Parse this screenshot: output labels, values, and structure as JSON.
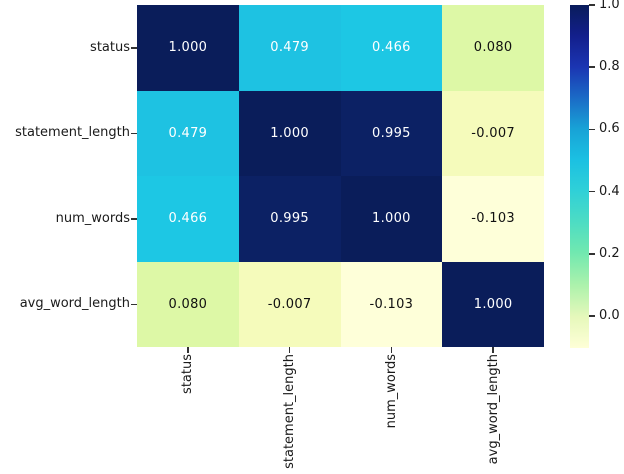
{
  "chart_data": {
    "type": "heatmap",
    "title": "",
    "colormap": "YlGnBu",
    "categories": [
      "status",
      "statement_length",
      "num_words",
      "avg_word_length"
    ],
    "matrix": [
      [
        1.0,
        0.479,
        0.466,
        0.08
      ],
      [
        0.479,
        1.0,
        0.995,
        -0.007
      ],
      [
        0.466,
        0.995,
        1.0,
        -0.103
      ],
      [
        0.08,
        -0.007,
        -0.103,
        1.0
      ]
    ],
    "cells": [
      [
        {
          "v": "1.000",
          "bg": "#0a1d5a",
          "fg": "#ffffff"
        },
        {
          "v": "0.479",
          "bg": "#1ec2e2",
          "fg": "#ffffff"
        },
        {
          "v": "0.466",
          "bg": "#1dc7e4",
          "fg": "#ffffff"
        },
        {
          "v": "0.080",
          "bg": "#ddf8a6",
          "fg": "#111111"
        }
      ],
      [
        {
          "v": "0.479",
          "bg": "#1ec2e2",
          "fg": "#ffffff"
        },
        {
          "v": "1.000",
          "bg": "#0a1d5a",
          "fg": "#ffffff"
        },
        {
          "v": "0.995",
          "bg": "#0c2164",
          "fg": "#ffffff"
        },
        {
          "v": "-0.007",
          "bg": "#f5fbbb",
          "fg": "#111111"
        }
      ],
      [
        {
          "v": "0.466",
          "bg": "#1dc7e4",
          "fg": "#ffffff"
        },
        {
          "v": "0.995",
          "bg": "#0c2164",
          "fg": "#ffffff"
        },
        {
          "v": "1.000",
          "bg": "#0a1d5a",
          "fg": "#ffffff"
        },
        {
          "v": "-0.103",
          "bg": "#feffd9",
          "fg": "#111111"
        }
      ],
      [
        {
          "v": "0.080",
          "bg": "#ddf8a6",
          "fg": "#111111"
        },
        {
          "v": "-0.007",
          "bg": "#f5fbbb",
          "fg": "#111111"
        },
        {
          "v": "-0.103",
          "bg": "#feffd9",
          "fg": "#111111"
        },
        {
          "v": "1.000",
          "bg": "#0a1d5a",
          "fg": "#ffffff"
        }
      ]
    ],
    "vmin": -0.103,
    "vmax": 1.0,
    "legend_position": "right",
    "grid": false,
    "colorbar": {
      "ticks": [
        "1.0",
        "0.8",
        "0.6",
        "0.4",
        "0.2",
        "0.0"
      ],
      "tick_values": [
        1.0,
        0.8,
        0.6,
        0.4,
        0.2,
        0.0
      ],
      "gradient": [
        {
          "pos": 0,
          "color": "#091c5b"
        },
        {
          "pos": 9,
          "color": "#131f8c"
        },
        {
          "pos": 18,
          "color": "#1b35b2"
        },
        {
          "pos": 27,
          "color": "#1b6ac6"
        },
        {
          "pos": 36,
          "color": "#18a2d6"
        },
        {
          "pos": 45,
          "color": "#1bc0e2"
        },
        {
          "pos": 54,
          "color": "#2fd0d8"
        },
        {
          "pos": 63,
          "color": "#4cdcc4"
        },
        {
          "pos": 72,
          "color": "#70e8b0"
        },
        {
          "pos": 82,
          "color": "#aef2ac"
        },
        {
          "pos": 91,
          "color": "#e6f8bb"
        },
        {
          "pos": 100,
          "color": "#feffd7"
        }
      ]
    }
  },
  "colors": {
    "background": "#ffffff",
    "tick": "#333333",
    "label_text": "#1a1a1a",
    "dark_cell": "#0a1d5a",
    "light_cell": "#feffd9"
  }
}
